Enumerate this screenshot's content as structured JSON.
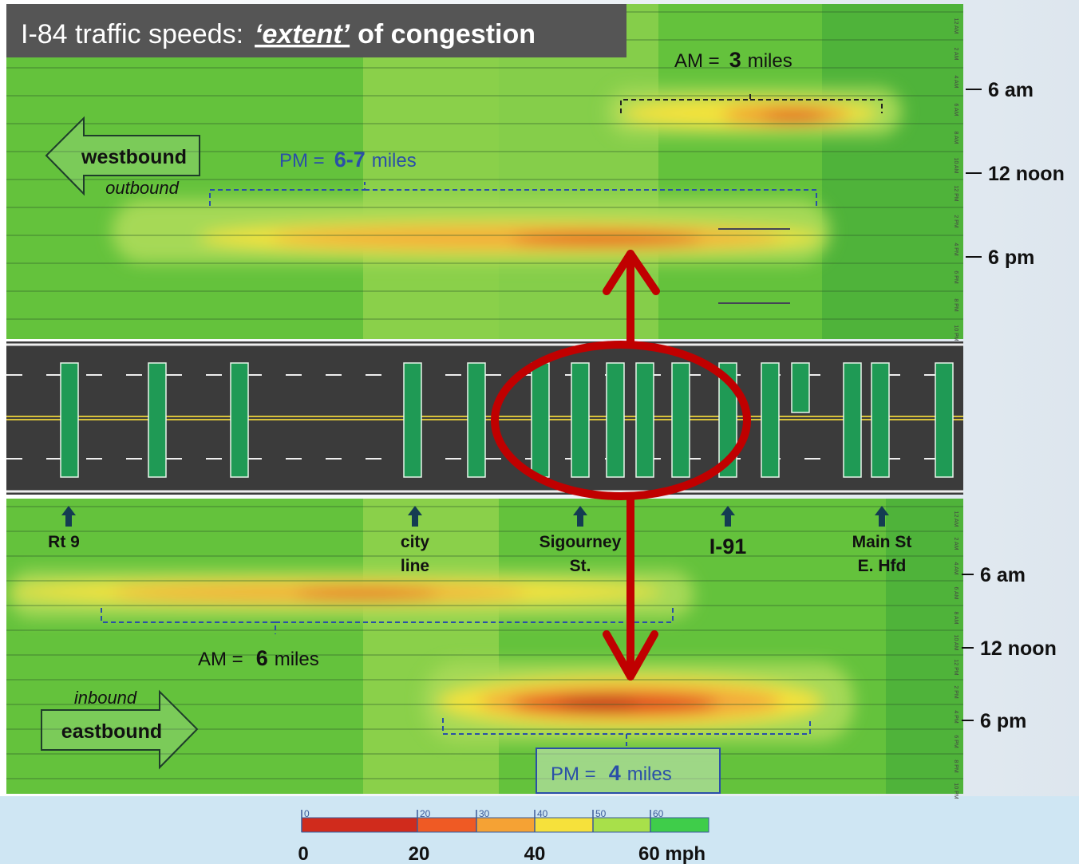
{
  "title": {
    "prefix": "I-84 traffic speeds:",
    "emph": "‘extent’",
    "suffix": "of congestion"
  },
  "westbound": {
    "direction": "westbound",
    "label": "outbound",
    "am": {
      "prefix": "AM =",
      "value": "3",
      "unit": "miles"
    },
    "pm": {
      "prefix": "PM =",
      "value": "6-7",
      "unit": "miles"
    },
    "times": [
      "6 am",
      "12 noon",
      "6 pm"
    ]
  },
  "eastbound": {
    "direction": "eastbound",
    "label": "inbound",
    "am": {
      "prefix": "AM =",
      "value": "6",
      "unit": "miles"
    },
    "pm": {
      "prefix": "PM =",
      "value": "4",
      "unit": "miles"
    },
    "times": [
      "6 am",
      "12 noon",
      "6 pm"
    ]
  },
  "hours": [
    "12 AM",
    "2 AM",
    "4 AM",
    "6 AM",
    "8 AM",
    "10 AM",
    "12 PM",
    "2 PM",
    "4 PM",
    "6 PM",
    "8 PM",
    "10 PM"
  ],
  "locations": [
    {
      "line1": "Rt 9"
    },
    {
      "line1": "city",
      "line2": "line"
    },
    {
      "line1": "Sigourney",
      "line2": "St."
    },
    {
      "line1": "I-91"
    },
    {
      "line1": "Main St",
      "line2": "E. Hfd"
    }
  ],
  "legend": {
    "small": [
      "0",
      "20",
      "30",
      "40",
      "50",
      "60"
    ],
    "large": [
      "0",
      "20",
      "40",
      "60 mph"
    ]
  }
}
